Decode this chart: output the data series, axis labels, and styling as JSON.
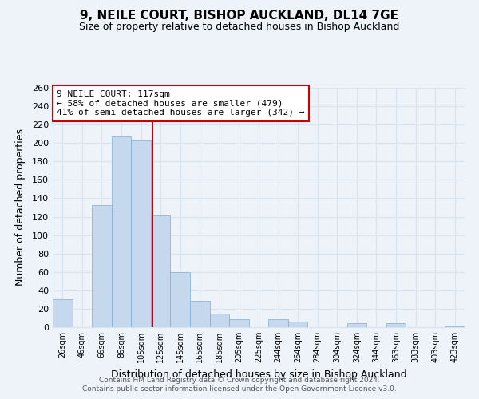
{
  "title": "9, NEILE COURT, BISHOP AUCKLAND, DL14 7GE",
  "subtitle": "Size of property relative to detached houses in Bishop Auckland",
  "xlabel": "Distribution of detached houses by size in Bishop Auckland",
  "ylabel": "Number of detached properties",
  "bar_labels": [
    "26sqm",
    "46sqm",
    "66sqm",
    "86sqm",
    "105sqm",
    "125sqm",
    "145sqm",
    "165sqm",
    "185sqm",
    "205sqm",
    "225sqm",
    "244sqm",
    "264sqm",
    "284sqm",
    "304sqm",
    "324sqm",
    "344sqm",
    "363sqm",
    "383sqm",
    "403sqm",
    "423sqm"
  ],
  "bar_values": [
    30,
    0,
    133,
    207,
    203,
    121,
    60,
    29,
    15,
    9,
    0,
    9,
    6,
    0,
    0,
    4,
    0,
    4,
    0,
    0,
    1
  ],
  "bar_color": "#c5d8ee",
  "bar_edge_color": "#7bafd4",
  "property_line_label": "9 NEILE COURT: 117sqm",
  "annotation_line1": "← 58% of detached houses are smaller (479)",
  "annotation_line2": "41% of semi-detached houses are larger (342) →",
  "annotation_box_color": "#ffffff",
  "annotation_box_edge": "#cc0000",
  "vline_color": "#cc0000",
  "ylim": [
    0,
    260
  ],
  "yticks": [
    0,
    20,
    40,
    60,
    80,
    100,
    120,
    140,
    160,
    180,
    200,
    220,
    240,
    260
  ],
  "footer1": "Contains HM Land Registry data © Crown copyright and database right 2024.",
  "footer2": "Contains public sector information licensed under the Open Government Licence v3.0.",
  "bg_color": "#eef2f9",
  "grid_color": "#d8e4f0"
}
